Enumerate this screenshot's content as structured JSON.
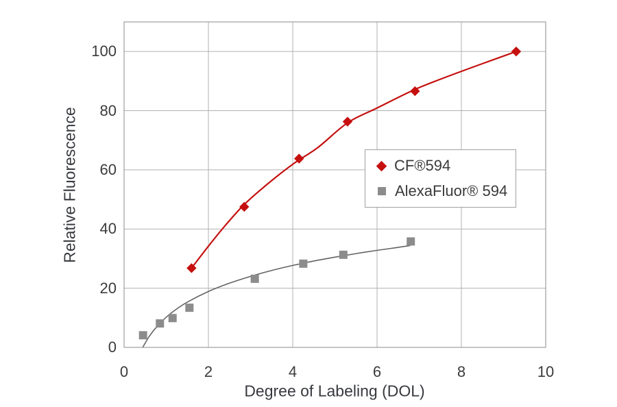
{
  "colors": {
    "cf_red": "#c5100f",
    "alexa_gray": "#8c8c8c",
    "alexa_line": "#636363",
    "gridline": "#b0b0b0",
    "plot_border": "#9c9c9c",
    "text": "#3b3b3b"
  },
  "chart_data": {
    "type": "scatter",
    "title": "",
    "xlabel": "Degree of Labeling (DOL)",
    "ylabel": "Relative Fluorescence",
    "xlim": [
      0,
      10
    ],
    "ylim": [
      0,
      110
    ],
    "x_ticks": [
      0,
      2,
      4,
      6,
      8,
      10
    ],
    "y_ticks": [
      0,
      20,
      40,
      60,
      80,
      100
    ],
    "grid": true,
    "legend_position": "inside-right",
    "series": [
      {
        "name": "CF®594",
        "marker": "diamond",
        "color": "#c5100f",
        "line_color": "#c5100f",
        "line_width": 2.2,
        "points": [
          [
            1.6,
            26.8
          ],
          [
            2.85,
            47.5
          ],
          [
            4.15,
            63.8
          ],
          [
            5.3,
            76.3
          ],
          [
            6.9,
            86.6
          ],
          [
            9.3,
            100
          ]
        ],
        "trend": [
          [
            1.6,
            26.8
          ],
          [
            2.0,
            34.2
          ],
          [
            2.4,
            41.2
          ],
          [
            2.85,
            48.3
          ],
          [
            3.4,
            55.2
          ],
          [
            4.0,
            61.9
          ],
          [
            4.6,
            67.6
          ],
          [
            5.3,
            75.9
          ],
          [
            6.0,
            80.9
          ],
          [
            6.9,
            87.2
          ],
          [
            7.7,
            91.7
          ],
          [
            8.5,
            95.9
          ],
          [
            9.3,
            100.0
          ]
        ]
      },
      {
        "name": "AlexaFluor® 594",
        "marker": "square",
        "color": "#8c8c8c",
        "line_color": "#636363",
        "line_width": 1.6,
        "points": [
          [
            0.45,
            4.1
          ],
          [
            0.85,
            8.1
          ],
          [
            1.15,
            9.9
          ],
          [
            1.55,
            13.4
          ],
          [
            3.1,
            23.2
          ],
          [
            4.25,
            28.3
          ],
          [
            5.2,
            31.3
          ],
          [
            6.8,
            35.8
          ]
        ],
        "trend": [
          [
            0.45,
            0.2
          ],
          [
            0.6,
            3.8
          ],
          [
            0.8,
            7.4
          ],
          [
            1.0,
            10.2
          ],
          [
            1.2,
            12.5
          ],
          [
            1.5,
            15.3
          ],
          [
            2.0,
            18.9
          ],
          [
            2.5,
            21.7
          ],
          [
            3.0,
            24.0
          ],
          [
            3.5,
            26.0
          ],
          [
            4.0,
            27.7
          ],
          [
            4.5,
            29.2
          ],
          [
            5.0,
            30.5
          ],
          [
            5.5,
            31.7
          ],
          [
            6.0,
            32.8
          ],
          [
            6.4,
            33.6
          ],
          [
            6.78,
            34.4
          ]
        ]
      }
    ]
  }
}
